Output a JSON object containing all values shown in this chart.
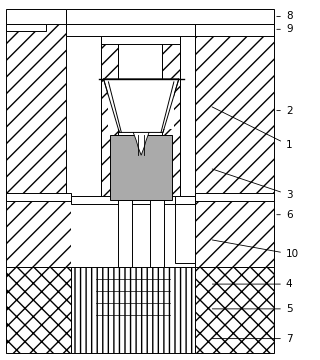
{
  "bg_color": "#ffffff",
  "lc": "#000000",
  "gray": "#aaaaaa",
  "lw": 0.7,
  "fig_w": 3.2,
  "fig_h": 3.6,
  "dpi": 100
}
